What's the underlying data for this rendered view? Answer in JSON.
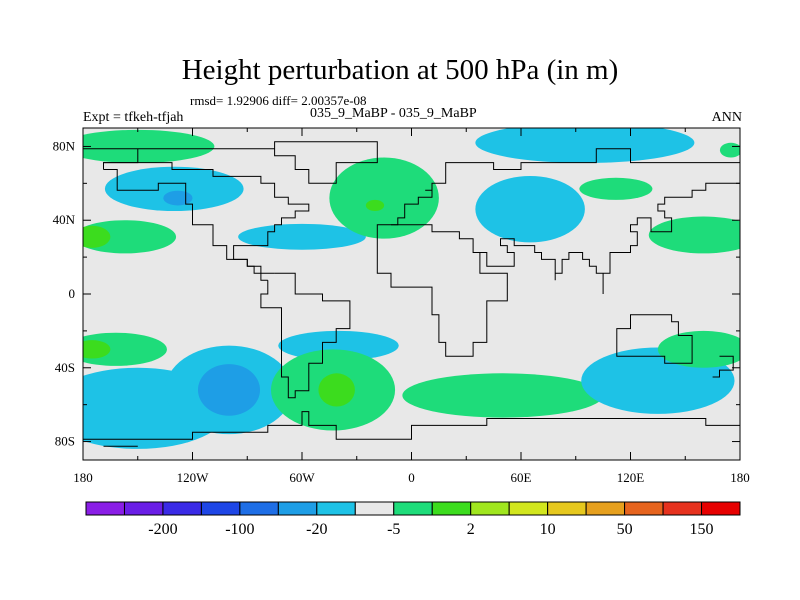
{
  "figure": {
    "title": "Height perturbation at 500 hPa (in m)",
    "stats": "rmsd= 1.92906 diff= 2.00357e-08",
    "subtitle": "035_9_MaBP - 035_9_MaBP",
    "expt": "Expt = tfkeh-tfjah",
    "season": "ANN"
  },
  "chart_data": {
    "type": "heatmap",
    "title": "Height perturbation at 500 hPa (in m)",
    "x_ticks": [
      {
        "value": -180,
        "label": "180"
      },
      {
        "value": -120,
        "label": "120W"
      },
      {
        "value": -60,
        "label": "60W"
      },
      {
        "value": 0,
        "label": "0"
      },
      {
        "value": 60,
        "label": "60E"
      },
      {
        "value": 120,
        "label": "120E"
      },
      {
        "value": 180,
        "label": "180"
      }
    ],
    "y_ticks": [
      {
        "value": 80,
        "label": "80N"
      },
      {
        "value": 40,
        "label": "40N"
      },
      {
        "value": 0,
        "label": "0"
      },
      {
        "value": -40,
        "label": "40S"
      },
      {
        "value": -80,
        "label": "80S"
      }
    ],
    "xlim": [
      -180,
      180
    ],
    "ylim": [
      -90,
      90
    ],
    "background_color": "#e8e8e8",
    "colorbar": {
      "colors": [
        "#8a1ee6",
        "#6a1ee6",
        "#3a2ae6",
        "#1e46e6",
        "#1e6ee6",
        "#1e9ee6",
        "#1ec2e6",
        "#e8e8e8",
        "#1edc7a",
        "#3cdc1e",
        "#a0e61e",
        "#d2e61e",
        "#e6c81e",
        "#e6a01e",
        "#e6641e",
        "#e6321e",
        "#e60000"
      ],
      "labels": [
        {
          "after_index": 1,
          "text": "-200"
        },
        {
          "after_index": 3,
          "text": "-100"
        },
        {
          "after_index": 5,
          "text": "-20"
        },
        {
          "after_index": 7,
          "text": "-5"
        },
        {
          "after_index": 9,
          "text": "2"
        },
        {
          "after_index": 11,
          "text": "10"
        },
        {
          "after_index": 13,
          "text": "50"
        },
        {
          "after_index": 15,
          "text": "150"
        }
      ]
    },
    "regions": [
      {
        "lon": -130,
        "lat": 57,
        "rlon": 38,
        "rlat": 12,
        "color": "#1ec2e6"
      },
      {
        "lon": -128,
        "lat": 52,
        "rlon": 8,
        "rlat": 4,
        "color": "#1e9ee6"
      },
      {
        "lon": -150,
        "lat": 80,
        "rlon": 42,
        "rlat": 9,
        "color": "#1edc7a"
      },
      {
        "lon": -157,
        "lat": 31,
        "rlon": 28,
        "rlat": 9,
        "color": "#1edc7a"
      },
      {
        "lon": -175,
        "lat": 31,
        "rlon": 10,
        "rlat": 6,
        "color": "#3cdc1e"
      },
      {
        "lon": -60,
        "lat": 31,
        "rlon": 35,
        "rlat": 7,
        "color": "#1ec2e6"
      },
      {
        "lon": -15,
        "lat": 52,
        "rlon": 30,
        "rlat": 22,
        "color": "#1edc7a"
      },
      {
        "lon": -20,
        "lat": 48,
        "rlon": 5,
        "rlat": 3,
        "color": "#3cdc1e"
      },
      {
        "lon": 95,
        "lat": 82,
        "rlon": 60,
        "rlat": 11,
        "color": "#1ec2e6"
      },
      {
        "lon": 65,
        "lat": 46,
        "rlon": 30,
        "rlat": 18,
        "color": "#1ec2e6"
      },
      {
        "lon": 112,
        "lat": 57,
        "rlon": 20,
        "rlat": 6,
        "color": "#1edc7a"
      },
      {
        "lon": 160,
        "lat": 32,
        "rlon": 30,
        "rlat": 10,
        "color": "#1edc7a"
      },
      {
        "lon": 175,
        "lat": 78,
        "rlon": 6,
        "rlat": 4,
        "color": "#1edc7a"
      },
      {
        "lon": -150,
        "lat": -62,
        "rlon": 50,
        "rlat": 22,
        "color": "#1ec2e6"
      },
      {
        "lon": -100,
        "lat": -52,
        "rlon": 35,
        "rlat": 24,
        "color": "#1ec2e6"
      },
      {
        "lon": -100,
        "lat": -52,
        "rlon": 17,
        "rlat": 14,
        "color": "#1e9ee6"
      },
      {
        "lon": -162,
        "lat": -30,
        "rlon": 28,
        "rlat": 9,
        "color": "#1edc7a"
      },
      {
        "lon": -175,
        "lat": -30,
        "rlon": 10,
        "rlat": 5,
        "color": "#3cdc1e"
      },
      {
        "lon": -40,
        "lat": -28,
        "rlon": 33,
        "rlat": 8,
        "color": "#1ec2e6"
      },
      {
        "lon": -43,
        "lat": -52,
        "rlon": 34,
        "rlat": 22,
        "color": "#1edc7a"
      },
      {
        "lon": -41,
        "lat": -52,
        "rlon": 10,
        "rlat": 9,
        "color": "#3cdc1e"
      },
      {
        "lon": 50,
        "lat": -55,
        "rlon": 55,
        "rlat": 12,
        "color": "#1edc7a"
      },
      {
        "lon": 135,
        "lat": -47,
        "rlon": 42,
        "rlat": 18,
        "color": "#1ec2e6"
      },
      {
        "lon": 160,
        "lat": -30,
        "rlon": 25,
        "rlat": 10,
        "color": "#1edc7a"
      }
    ],
    "coastlines": [
      [
        [
          -180,
          80
        ],
        [
          -90,
          80
        ],
        [
          -75,
          84
        ],
        [
          -60,
          84
        ],
        [
          -30,
          83
        ],
        [
          -20,
          70
        ],
        [
          -42,
          60
        ],
        [
          -55,
          67
        ],
        [
          -65,
          76
        ],
        [
          -75,
          80
        ],
        [
          -95,
          80
        ],
        [
          -120,
          77
        ],
        [
          -150,
          72
        ],
        [
          -170,
          66
        ]
      ],
      [
        [
          -170,
          66
        ],
        [
          -160,
          58
        ],
        [
          -140,
          60
        ],
        [
          -125,
          50
        ],
        [
          -120,
          37
        ],
        [
          -110,
          25
        ],
        [
          -100,
          18
        ],
        [
          -90,
          15
        ],
        [
          -82,
          9
        ],
        [
          -77,
          8
        ]
      ],
      [
        [
          -77,
          8
        ],
        [
          -80,
          0
        ],
        [
          -81,
          -6
        ],
        [
          -72,
          -18
        ],
        [
          -70,
          -30
        ],
        [
          -73,
          -45
        ],
        [
          -68,
          -55
        ],
        [
          -65,
          -53
        ],
        [
          -58,
          -38
        ],
        [
          -48,
          -26
        ],
        [
          -40,
          -20
        ],
        [
          -35,
          -5
        ],
        [
          -50,
          0
        ],
        [
          -62,
          10
        ],
        [
          -76,
          10
        ]
      ],
      [
        [
          -76,
          10
        ],
        [
          -85,
          15
        ],
        [
          -90,
          20
        ],
        [
          -97,
          27
        ],
        [
          -82,
          25
        ],
        [
          -80,
          32
        ],
        [
          -75,
          36
        ],
        [
          -70,
          42
        ],
        [
          -65,
          45
        ],
        [
          -58,
          48
        ],
        [
          -67,
          52
        ],
        [
          -75,
          60
        ],
        [
          -82,
          62
        ],
        [
          -95,
          63
        ],
        [
          -110,
          68
        ],
        [
          -130,
          70
        ],
        [
          -160,
          71
        ],
        [
          -170,
          66
        ]
      ],
      [
        [
          -10,
          36
        ],
        [
          -9,
          43
        ],
        [
          -2,
          44
        ],
        [
          -5,
          49
        ],
        [
          5,
          51
        ],
        [
          10,
          55
        ],
        [
          8,
          58
        ],
        [
          13,
          60
        ],
        [
          18,
          70
        ],
        [
          30,
          70
        ],
        [
          45,
          68
        ],
        [
          60,
          70
        ],
        [
          80,
          73
        ],
        [
          100,
          77
        ],
        [
          120,
          73
        ],
        [
          140,
          72
        ],
        [
          160,
          70
        ],
        [
          180,
          66
        ]
      ],
      [
        [
          -10,
          36
        ],
        [
          -17,
          20
        ],
        [
          -17,
          12
        ],
        [
          -10,
          5
        ],
        [
          0,
          5
        ],
        [
          9,
          4
        ],
        [
          10,
          -2
        ],
        [
          12,
          -12
        ],
        [
          15,
          -28
        ],
        [
          19,
          -35
        ],
        [
          28,
          -33
        ],
        [
          32,
          -28
        ],
        [
          40,
          -15
        ],
        [
          40,
          -3
        ],
        [
          51,
          11
        ],
        [
          43,
          12
        ],
        [
          36,
          22
        ],
        [
          32,
          31
        ],
        [
          25,
          32
        ],
        [
          12,
          33
        ],
        [
          10,
          37
        ],
        [
          0,
          36
        ],
        [
          -10,
          36
        ]
      ],
      [
        [
          36,
          22
        ],
        [
          43,
          15
        ],
        [
          52,
          16
        ],
        [
          57,
          22
        ],
        [
          52,
          25
        ],
        [
          50,
          30
        ],
        [
          56,
          26
        ],
        [
          62,
          25
        ],
        [
          68,
          23
        ],
        [
          73,
          18
        ],
        [
          77,
          8
        ],
        [
          80,
          13
        ],
        [
          82,
          17
        ],
        [
          88,
          22
        ],
        [
          92,
          20
        ],
        [
          98,
          16
        ],
        [
          100,
          13
        ],
        [
          104,
          1
        ],
        [
          106,
          10
        ],
        [
          109,
          12
        ],
        [
          108,
          22
        ],
        [
          113,
          22
        ],
        [
          120,
          25
        ],
        [
          122,
          32
        ],
        [
          120,
          38
        ],
        [
          122,
          40
        ],
        [
          130,
          42
        ],
        [
          130,
          35
        ],
        [
          137,
          35
        ],
        [
          141,
          41
        ],
        [
          140,
          46
        ],
        [
          135,
          48
        ],
        [
          140,
          54
        ],
        [
          155,
          57
        ],
        [
          162,
          60
        ],
        [
          180,
          65
        ]
      ],
      [
        [
          114,
          -22
        ],
        [
          114,
          -34
        ],
        [
          123,
          -34
        ],
        [
          130,
          -32
        ],
        [
          137,
          -35
        ],
        [
          140,
          -38
        ],
        [
          148,
          -38
        ],
        [
          153,
          -28
        ],
        [
          153,
          -24
        ],
        [
          145,
          -15
        ],
        [
          142,
          -11
        ],
        [
          136,
          -12
        ],
        [
          130,
          -11
        ],
        [
          120,
          -19
        ],
        [
          114,
          -22
        ]
      ],
      [
        [
          168,
          -35
        ],
        [
          178,
          -38
        ],
        [
          175,
          -42
        ],
        [
          168,
          -46
        ],
        [
          166,
          -45
        ]
      ],
      [
        [
          -180,
          -78
        ],
        [
          -120,
          -74
        ],
        [
          -80,
          -72
        ],
        [
          -60,
          -64
        ],
        [
          -58,
          -70
        ],
        [
          -40,
          -78
        ],
        [
          0,
          -70
        ],
        [
          40,
          -68
        ],
        [
          90,
          -66
        ],
        [
          130,
          -66
        ],
        [
          160,
          -70
        ],
        [
          180,
          -78
        ]
      ],
      [
        [
          -170,
          -82
        ],
        [
          -150,
          -82
        ]
      ]
    ]
  }
}
